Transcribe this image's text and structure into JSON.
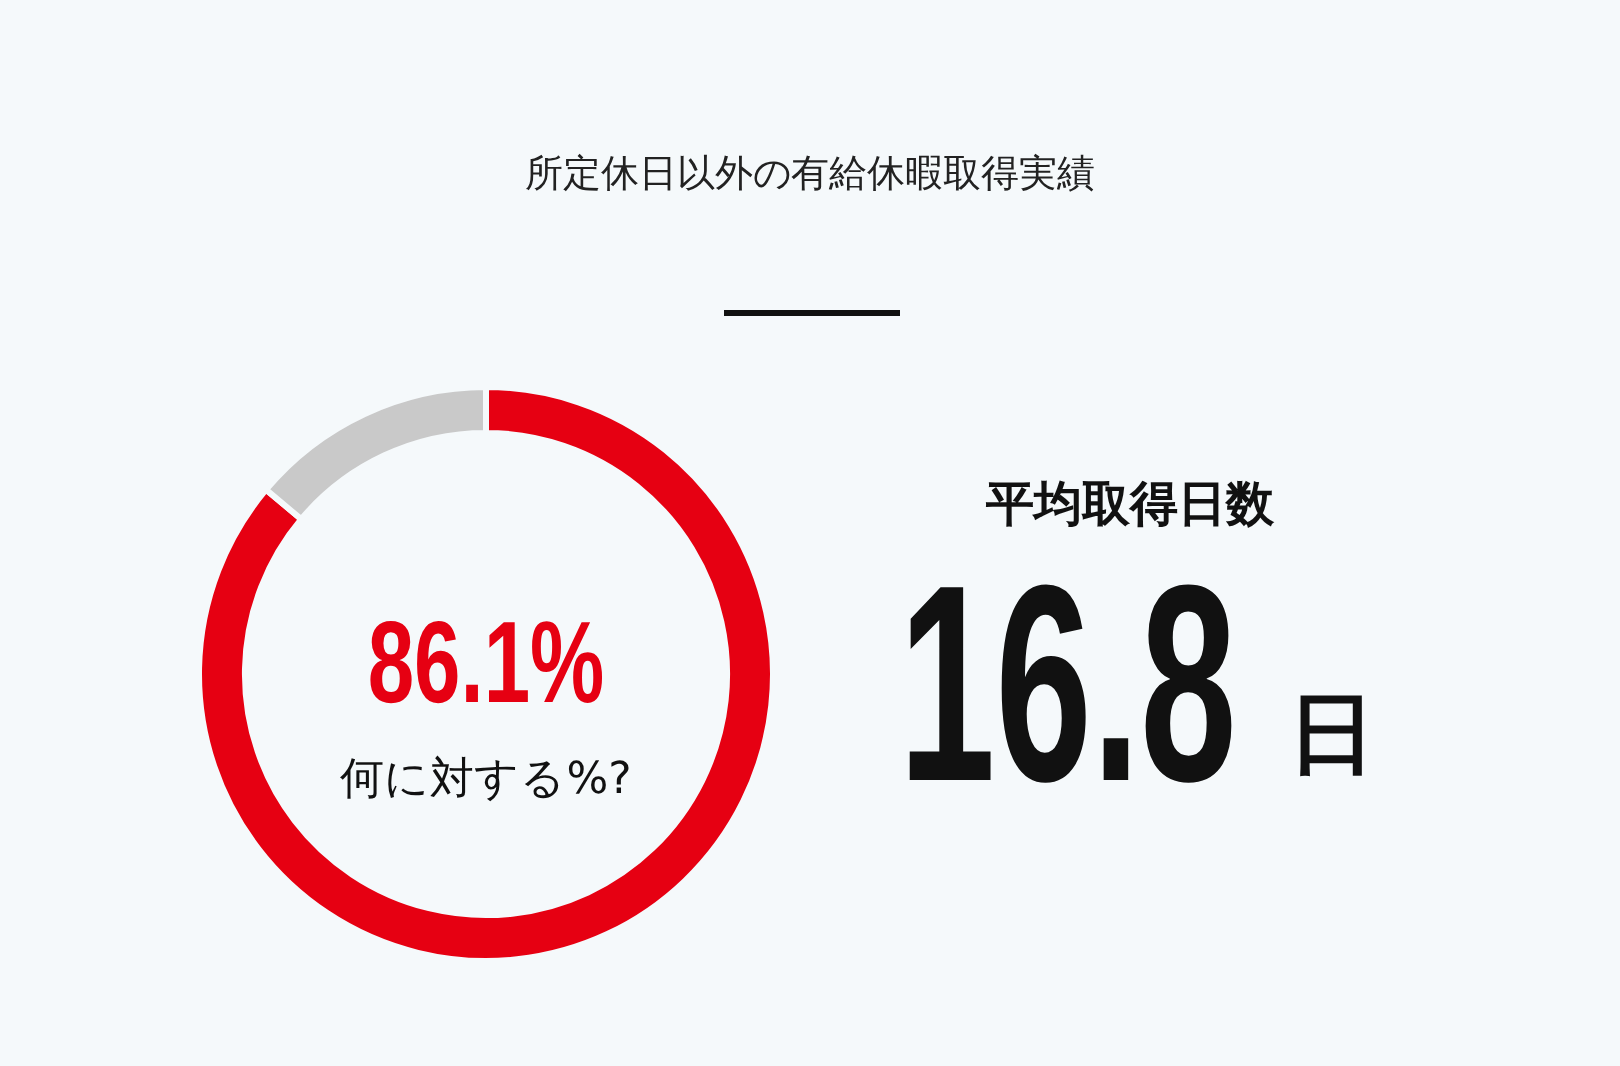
{
  "chart_data": {
    "type": "donut",
    "title": "所定休日以外の有給休暇取得実績",
    "categories": [
      null,
      null
    ],
    "values": [
      86.1,
      13.9
    ],
    "colors": [
      "#e60012",
      "#c9c9c9"
    ],
    "value_labels": [
      "86.1%",
      null
    ],
    "legend": false,
    "annotations": [
      "何に対する%?",
      "平均取得日数",
      "16.8",
      "日"
    ]
  }
}
